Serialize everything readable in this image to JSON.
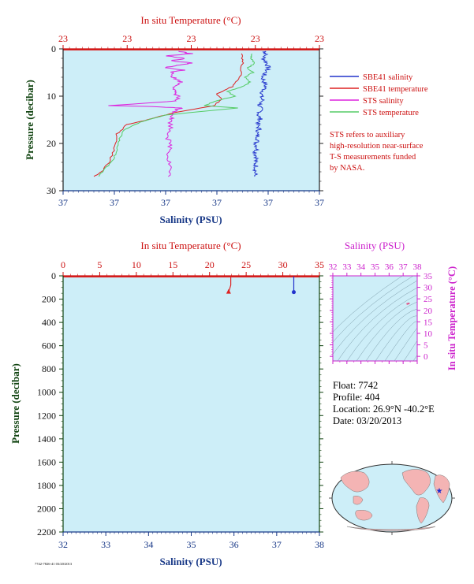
{
  "colors": {
    "plot_bg": "#cdeef8",
    "salinity": "#2233cc",
    "temperature": "#dd2222",
    "sts_salinity": "#dd22dd",
    "sts_temperature": "#55cc66",
    "axis_left_bottom": "#1a3a88",
    "axis_top": "#cc1111",
    "pressure_label": "#114411",
    "ts_axis": "#cc22cc",
    "info_text": "#000000",
    "note_text": "#cc1111",
    "land": "#f4b4b4",
    "ocean": "#cdeef8"
  },
  "chart_data": [
    {
      "type": "line",
      "panel": "upper",
      "top_axis_label": "In situ Temperature (°C)",
      "top_tick_labels": [
        "23",
        "23",
        "23",
        "23",
        "23"
      ],
      "bottom_axis_label": "Salinity (PSU)",
      "bottom_tick_labels": [
        "37",
        "37",
        "37",
        "37",
        "37",
        "37"
      ],
      "ylabel": "Pressure (decibar)",
      "ylim": [
        0,
        30
      ],
      "y_ticks": [
        0,
        10,
        20,
        30
      ],
      "y_inverted": true,
      "series": [
        {
          "name": "SBE41 salinity",
          "color_key": "salinity",
          "points": [
            [
              0.788,
              0.5
            ],
            [
              0.79,
              1
            ],
            [
              0.782,
              2
            ],
            [
              0.795,
              3
            ],
            [
              0.8,
              4
            ],
            [
              0.79,
              5
            ],
            [
              0.778,
              6
            ],
            [
              0.785,
              7
            ],
            [
              0.79,
              8
            ],
            [
              0.78,
              9
            ],
            [
              0.772,
              10
            ],
            [
              0.778,
              11
            ],
            [
              0.765,
              12
            ],
            [
              0.772,
              13
            ],
            [
              0.762,
              14
            ],
            [
              0.77,
              15
            ],
            [
              0.758,
              16
            ],
            [
              0.765,
              17
            ],
            [
              0.755,
              18
            ],
            [
              0.762,
              19
            ],
            [
              0.752,
              20
            ],
            [
              0.758,
              21
            ],
            [
              0.75,
              22
            ],
            [
              0.756,
              23
            ],
            [
              0.748,
              24
            ],
            [
              0.754,
              25
            ],
            [
              0.75,
              26
            ],
            [
              0.748,
              27
            ]
          ]
        },
        {
          "name": "SBE41 temperature",
          "color_key": "temperature",
          "points": [
            [
              0.7,
              1
            ],
            [
              0.7,
              3
            ],
            [
              0.69,
              6
            ],
            [
              0.66,
              8
            ],
            [
              0.6,
              9.5
            ],
            [
              0.62,
              10.5
            ],
            [
              0.59,
              12
            ],
            [
              0.43,
              13.5
            ],
            [
              0.33,
              15
            ],
            [
              0.25,
              16
            ],
            [
              0.21,
              18
            ],
            [
              0.2,
              21
            ],
            [
              0.18,
              24
            ],
            [
              0.15,
              26
            ],
            [
              0.12,
              27
            ]
          ]
        },
        {
          "name": "STS salinity",
          "color_key": "sts_salinity",
          "points": [
            [
              0.45,
              0.5
            ],
            [
              0.5,
              1
            ],
            [
              0.4,
              1.5
            ],
            [
              0.48,
              2
            ],
            [
              0.42,
              2.5
            ],
            [
              0.5,
              3
            ],
            [
              0.44,
              3.5
            ],
            [
              0.4,
              4
            ],
            [
              0.47,
              4.5
            ],
            [
              0.42,
              5
            ],
            [
              0.43,
              6
            ],
            [
              0.46,
              7
            ],
            [
              0.44,
              8
            ],
            [
              0.43,
              9
            ],
            [
              0.45,
              10
            ],
            [
              0.44,
              11
            ],
            [
              0.18,
              12
            ],
            [
              0.35,
              12.2
            ],
            [
              0.46,
              12.5
            ],
            [
              0.44,
              13
            ],
            [
              0.43,
              14
            ],
            [
              0.42,
              15
            ],
            [
              0.42,
              17
            ],
            [
              0.41,
              19
            ],
            [
              0.42,
              21
            ],
            [
              0.41,
              23
            ],
            [
              0.42,
              25
            ],
            [
              0.41,
              27
            ]
          ]
        },
        {
          "name": "STS temperature",
          "color_key": "sts_temperature",
          "points": [
            [
              0.74,
              1
            ],
            [
              0.73,
              2
            ],
            [
              0.75,
              3
            ],
            [
              0.72,
              4
            ],
            [
              0.74,
              5
            ],
            [
              0.71,
              6
            ],
            [
              0.73,
              7
            ],
            [
              0.7,
              8
            ],
            [
              0.64,
              9
            ],
            [
              0.67,
              10
            ],
            [
              0.6,
              11
            ],
            [
              0.55,
              12
            ],
            [
              0.68,
              12.5
            ],
            [
              0.4,
              14
            ],
            [
              0.3,
              15.5
            ],
            [
              0.24,
              17
            ],
            [
              0.22,
              19
            ],
            [
              0.21,
              21
            ],
            [
              0.2,
              23
            ],
            [
              0.17,
              25
            ],
            [
              0.14,
              27
            ]
          ]
        }
      ],
      "legend": [
        {
          "label": "SBE41 salinity",
          "color_key": "salinity"
        },
        {
          "label": "SBE41 temperature",
          "color_key": "temperature"
        },
        {
          "label": "STS salinity",
          "color_key": "sts_salinity"
        },
        {
          "label": "STS temperature",
          "color_key": "sts_temperature"
        }
      ],
      "legend_placement": "right",
      "note_lines": [
        "STS refers to auxiliary",
        "high-resolution near-surface",
        "T-S measurements funded",
        "by NASA."
      ]
    },
    {
      "type": "line",
      "panel": "lower",
      "top_axis_label": "In situ Temperature (°C)",
      "top_ticks": [
        0,
        5,
        10,
        15,
        20,
        25,
        30,
        35
      ],
      "xlim_top": [
        0,
        35
      ],
      "bottom_axis_label": "Salinity (PSU)",
      "bottom_ticks": [
        32,
        33,
        34,
        35,
        36,
        37,
        38
      ],
      "xlim_bottom": [
        32,
        38
      ],
      "ylabel": "Pressure (decibar)",
      "ylim": [
        0,
        2200
      ],
      "y_ticks": [
        0,
        200,
        400,
        600,
        800,
        1000,
        1200,
        1400,
        1600,
        1800,
        2000,
        2200
      ],
      "y_inverted": true,
      "series": [
        {
          "name": "SBE41 temperature",
          "axis": "top",
          "color_key": "temperature",
          "points": [
            [
              22.9,
              0
            ],
            [
              22.9,
              80
            ],
            [
              22.6,
              140
            ]
          ]
        },
        {
          "name": "SBE41 salinity",
          "axis": "bottom",
          "color_key": "salinity",
          "points": [
            [
              37.4,
              0
            ],
            [
              37.4,
              80
            ],
            [
              37.4,
              140
            ]
          ]
        }
      ]
    },
    {
      "type": "scatter",
      "panel": "ts-diagram",
      "top_axis_label": "Salinity (PSU)",
      "x_ticks": [
        32,
        33,
        34,
        35,
        36,
        37,
        38
      ],
      "xlim": [
        32,
        38
      ],
      "right_axis_label": "In situ Temperature (°C)",
      "y_ticks": [
        0,
        5,
        10,
        15,
        20,
        25,
        30,
        35
      ],
      "ylim": [
        -2,
        35
      ],
      "points": [
        [
          37.4,
          23
        ],
        [
          37.3,
          22.8
        ]
      ]
    }
  ],
  "float_info": {
    "float": "Float: 7742",
    "profile": "Profile: 404",
    "location": "Location: 26.9°N -40.2°E",
    "date": "Date: 03/20/2013"
  },
  "map_marker": {
    "lon": -40.2,
    "lat": 26.9,
    "symbol": "★"
  },
  "footer_stamp": "7742-7826-41 03/20/2013"
}
